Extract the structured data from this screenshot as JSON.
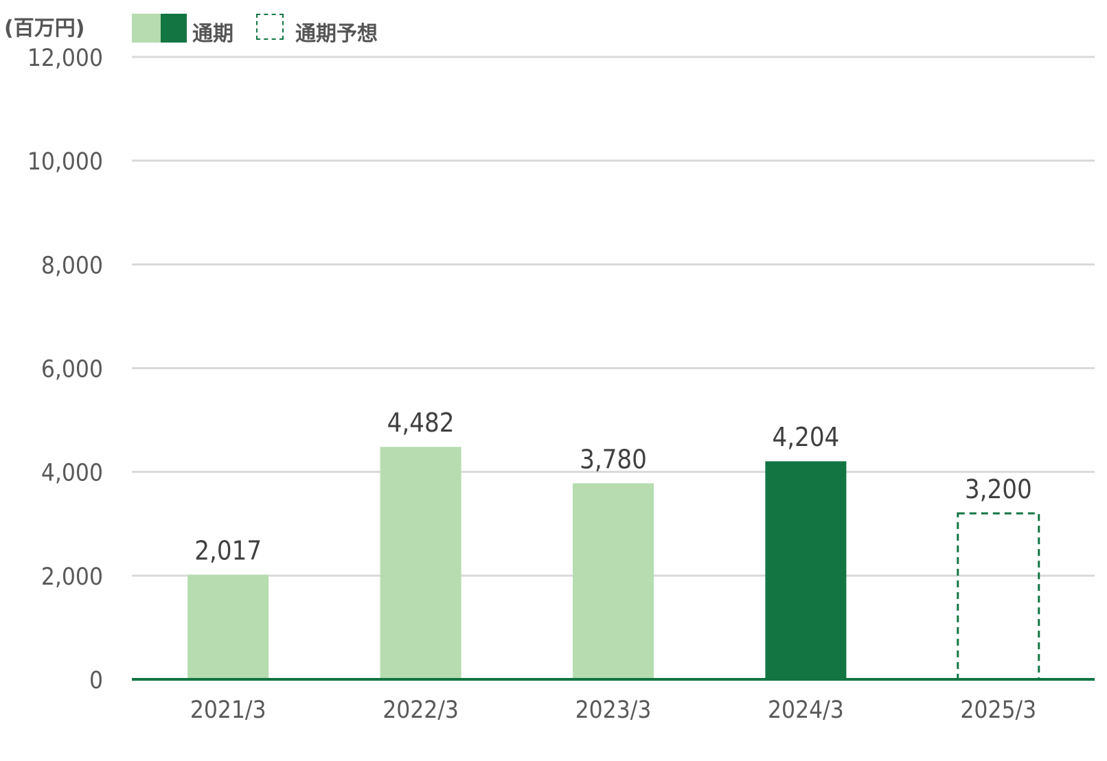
{
  "unit_label": "(百万円)",
  "legend": {
    "actual_label": "通期",
    "forecast_label": "通期予想"
  },
  "colors": {
    "past": "#b6dcb0",
    "current": "#137542",
    "forecast_border": "#137542",
    "grid": "#d9d9d9",
    "baseline": "#137542",
    "text": "#595959"
  },
  "chart_data": {
    "type": "bar",
    "categories": [
      "2021/3",
      "2022/3",
      "2023/3",
      "2024/3",
      "2025/3"
    ],
    "values": [
      2017,
      4482,
      3780,
      4204,
      3200
    ],
    "data_labels": [
      "2,017",
      "4,482",
      "3,780",
      "4,204",
      "3,200"
    ],
    "bar_kind": [
      "past",
      "past",
      "past",
      "current",
      "forecast"
    ],
    "ylabel": "(百万円)",
    "ylim": [
      0,
      12000
    ],
    "yticks": [
      0,
      2000,
      4000,
      6000,
      8000,
      10000,
      12000
    ],
    "ytick_labels": [
      "0",
      "2,000",
      "4,000",
      "6,000",
      "8,000",
      "10,000",
      "12,000"
    ],
    "grid": true,
    "legend_position": "top-left"
  }
}
